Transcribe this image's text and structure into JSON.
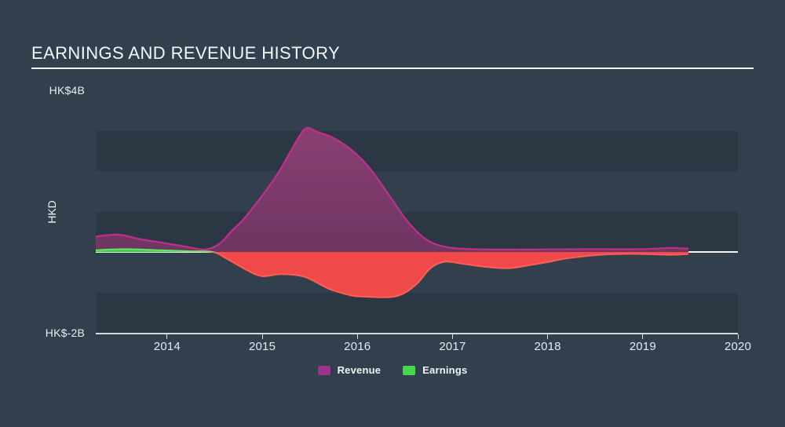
{
  "title": "EARNINGS AND REVENUE HISTORY",
  "y_axis": {
    "top_label": "HK$4B",
    "bottom_label": "HK$-2B",
    "unit_label": "HKD"
  },
  "x_axis": {
    "ticks": [
      "2014",
      "2015",
      "2016",
      "2017",
      "2018",
      "2019",
      "2020"
    ]
  },
  "legend": {
    "revenue_label": "Revenue",
    "earnings_label": "Earnings"
  },
  "colors": {
    "background": "#32404e",
    "band": "rgba(0,0,0,0.12)",
    "zero_line": "#f3f6f8",
    "axis_line": "#dde6ee",
    "revenue_fill_top": "#8a3f73",
    "revenue_fill_bottom": "#6e3563",
    "revenue_stroke": "#c22d8c",
    "earnings_pos_fill": "#3acb40",
    "earnings_pos_stroke": "#62e664",
    "earnings_neg_fill": "#ef4a49",
    "earnings_neg_stroke": "#ff5f56",
    "legend_revenue_swatch": "#9e3188",
    "legend_earnings_swatch": "#47d64b",
    "text": "#f0f4f8"
  },
  "chart_data": {
    "type": "area",
    "title": "EARNINGS AND REVENUE HISTORY",
    "currency_unit": "HKD (billions)",
    "xlabel": "",
    "ylabel": "HKD",
    "x_range": [
      2013.25,
      2020
    ],
    "ylim": [
      -2,
      4
    ],
    "y_gridline_step": 1,
    "grid_bands": "alternating horizontal bands every 1B",
    "legend_position": "bottom-center",
    "series": [
      {
        "name": "Revenue",
        "style": "area-with-line",
        "x": [
          2013.25,
          2013.48,
          2013.73,
          2014.0,
          2014.22,
          2014.4,
          2014.55,
          2014.67,
          2014.8,
          2014.93,
          2015.05,
          2015.18,
          2015.3,
          2015.4,
          2015.47,
          2015.58,
          2015.75,
          2015.94,
          2016.12,
          2016.32,
          2016.53,
          2016.73,
          2016.94,
          2017.2,
          2017.6,
          2018.0,
          2018.5,
          2019.0,
          2019.3,
          2019.48
        ],
        "values": [
          0.38,
          0.43,
          0.31,
          0.21,
          0.12,
          0.06,
          0.2,
          0.5,
          0.8,
          1.18,
          1.55,
          2.0,
          2.5,
          2.9,
          3.07,
          2.97,
          2.82,
          2.52,
          2.1,
          1.45,
          0.75,
          0.3,
          0.12,
          0.07,
          0.06,
          0.065,
          0.07,
          0.07,
          0.1,
          0.08
        ]
      },
      {
        "name": "Earnings",
        "style": "area-with-line, green above zero / red below zero",
        "x": [
          2013.25,
          2013.56,
          2013.9,
          2014.22,
          2014.48,
          2014.63,
          2014.84,
          2015.0,
          2015.2,
          2015.45,
          2015.7,
          2015.91,
          2016.03,
          2016.4,
          2016.61,
          2016.77,
          2016.92,
          2017.1,
          2017.35,
          2017.6,
          2017.85,
          2018.0,
          2018.17,
          2018.33,
          2018.5,
          2018.75,
          2019.0,
          2019.3,
          2019.48
        ],
        "values": [
          0.045,
          0.07,
          0.045,
          0.02,
          0.0,
          -0.17,
          -0.45,
          -0.6,
          -0.55,
          -0.62,
          -0.91,
          -1.06,
          -1.1,
          -1.1,
          -0.82,
          -0.4,
          -0.24,
          -0.29,
          -0.37,
          -0.4,
          -0.31,
          -0.25,
          -0.17,
          -0.12,
          -0.08,
          -0.05,
          -0.05,
          -0.07,
          -0.05
        ]
      }
    ]
  }
}
